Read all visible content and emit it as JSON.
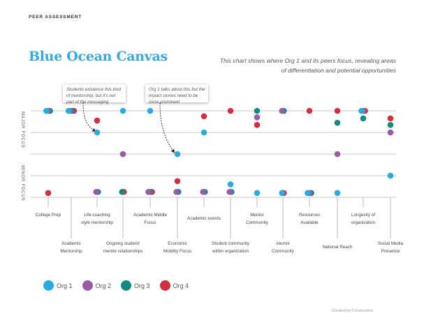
{
  "header": {
    "kicker": "PEER ASSESSMENT",
    "title": "Blue Ocean Canvas",
    "subtitle": "This chart shows where Org 1 and its peers focus, revealing areas of differentiation and potential opportunities"
  },
  "annotations": [
    {
      "text": "Students existence this kind of mentorship, but it's not part of the messaging",
      "points_to": "Life-coaching style mentorship"
    },
    {
      "text": "Org 1 talks about this but the impact stories need to be more prominent",
      "points_to": "Economic Mobility Focus"
    }
  ],
  "footer": {
    "credit": "Created by Constructive"
  },
  "chart_data": {
    "type": "scatter",
    "title": "Blue Ocean Canvas",
    "y_axis_labels": [
      "MAJOR FOCUS",
      "MINOR FOCUS"
    ],
    "ylim": [
      1,
      5
    ],
    "grid": true,
    "legend_position": "bottom-left",
    "categories": [
      [
        "College Prep"
      ],
      [
        "Academic",
        "Mentorship"
      ],
      [
        "Life-coaching",
        "style mentorship"
      ],
      [
        "Ongoing student/",
        "mentor relationships"
      ],
      [
        "Academic Middle",
        "Focus"
      ],
      [
        "Economic",
        "Mobility Focus"
      ],
      [
        "Academic events"
      ],
      [
        "Student community",
        "within organization"
      ],
      [
        "Mentor",
        "Community"
      ],
      [
        "Alumni",
        "Community"
      ],
      [
        "Resources",
        "Available"
      ],
      [
        "National Reach"
      ],
      [
        "Longevity of",
        "organization"
      ],
      [
        "Social Media",
        "Presence"
      ]
    ],
    "series": [
      {
        "name": "Org 1",
        "color": "#29abe2",
        "values": [
          5,
          5,
          4,
          5,
          5,
          3,
          4,
          1.6,
          1.2,
          1.2,
          1.2,
          1.2,
          5,
          2
        ]
      },
      {
        "name": "Org 2",
        "color": "#9b5aa7",
        "values": [
          5,
          5,
          1.25,
          3,
          1.25,
          1.25,
          1.25,
          1.25,
          4.7,
          5,
          1.2,
          3,
          5,
          4
        ]
      },
      {
        "name": "Org 3",
        "color": "#138a80",
        "values": [
          5,
          5,
          1.25,
          1.25,
          1.25,
          1.25,
          1.25,
          1.25,
          5,
          5,
          1.2,
          4.45,
          4.65,
          4.35
        ]
      },
      {
        "name": "Org 4",
        "color": "#d0313d",
        "values": [
          1.2,
          5,
          4.55,
          1.25,
          1.25,
          1.75,
          4.75,
          5,
          4.35,
          1.2,
          5,
          5,
          5,
          4.65
        ]
      }
    ]
  }
}
